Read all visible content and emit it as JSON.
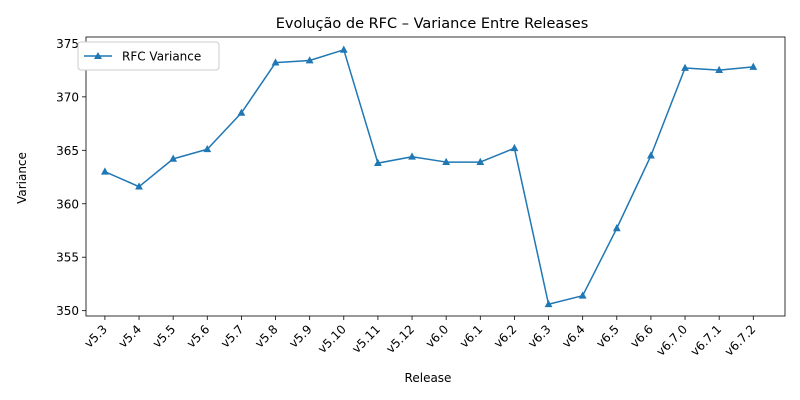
{
  "chart_data": {
    "type": "line",
    "title": "Evolução de RFC – Variance Entre Releases",
    "xlabel": "Release",
    "ylabel": "Variance",
    "categories": [
      "v5.3",
      "v5.4",
      "v5.5",
      "v5.6",
      "v5.7",
      "v5.8",
      "v5.9",
      "v5.10",
      "v5.11",
      "v5.12",
      "v6.0",
      "v6.1",
      "v6.2",
      "v6.3",
      "v6.4",
      "v6.5",
      "v6.6",
      "v6.7.0",
      "v6.7.1",
      "v6.7.2"
    ],
    "series": [
      {
        "name": "RFC Variance",
        "color": "#1f77b4",
        "marker": "triangle-up",
        "values": [
          363.0,
          361.6,
          364.2,
          365.1,
          368.5,
          373.2,
          373.4,
          374.4,
          363.8,
          364.4,
          363.9,
          363.9,
          365.2,
          350.6,
          351.4,
          357.7,
          364.5,
          372.7,
          372.5,
          372.8
        ]
      }
    ],
    "ylim": [
      349.5,
      375.6
    ],
    "yticks": [
      350,
      355,
      360,
      365,
      370,
      375
    ],
    "grid": false,
    "legend_position": "top-left"
  }
}
